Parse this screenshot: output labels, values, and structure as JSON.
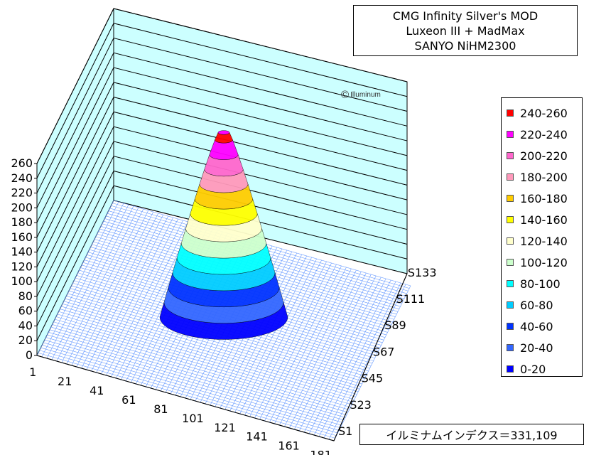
{
  "chart_data": {
    "type": "surface3d",
    "title_lines": [
      "CMG Infinity  Silver's MOD",
      "Luxeon III + MadMax",
      "SANYO NiHM2300"
    ],
    "y_axis_ticks": [
      "0",
      "20",
      "40",
      "60",
      "80",
      "100",
      "120",
      "140",
      "160",
      "180",
      "200",
      "220",
      "240",
      "260"
    ],
    "ylim": [
      0,
      260
    ],
    "x_axis_ticks": [
      "1",
      "21",
      "41",
      "61",
      "81",
      "101",
      "121",
      "141",
      "161",
      "181"
    ],
    "depth_axis_ticks": [
      "S1",
      "S23",
      "S45",
      "S67",
      "S89",
      "S111",
      "S133"
    ],
    "peak_value": 250,
    "legend": [
      {
        "label": "240-260",
        "color": "#ff0000"
      },
      {
        "label": "220-240",
        "color": "#ff00ff"
      },
      {
        "label": "200-220",
        "color": "#ff66cc"
      },
      {
        "label": "180-200",
        "color": "#ff99bb"
      },
      {
        "label": "160-180",
        "color": "#ffcc00"
      },
      {
        "label": "140-160",
        "color": "#ffff00"
      },
      {
        "label": "120-140",
        "color": "#ffffcc"
      },
      {
        "label": "100-120",
        "color": "#ccffcc"
      },
      {
        "label": "80-100",
        "color": "#00ffff"
      },
      {
        "label": "60-80",
        "color": "#00ccff"
      },
      {
        "label": "40-60",
        "color": "#0033ff"
      },
      {
        "label": "20-40",
        "color": "#3366ff"
      },
      {
        "label": "0-20",
        "color": "#0000ff"
      }
    ],
    "wall_color": "#ccffff",
    "floor_line_color": "#6699ff"
  },
  "copyright": "Illuminum",
  "index_label": "イルミナムインデクス＝331,109"
}
